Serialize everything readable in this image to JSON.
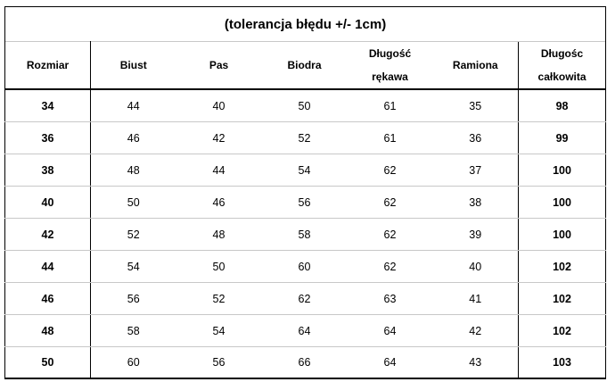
{
  "title": "(tolerancja błędu +/- 1cm)",
  "headers": {
    "size": "Rozmiar",
    "bust": "Biust",
    "waist": "Pas",
    "hips": "Biodra",
    "sleeve_line1": "Długość",
    "sleeve_line2": "rękawa",
    "shoulders": "Ramiona",
    "total_line1": "Długośc",
    "total_line2": "całkowita"
  },
  "rows": [
    {
      "size": "34",
      "bust": "44",
      "waist": "40",
      "hips": "50",
      "sleeve": "61",
      "shoulders": "35",
      "total": "98"
    },
    {
      "size": "36",
      "bust": "46",
      "waist": "42",
      "hips": "52",
      "sleeve": "61",
      "shoulders": "36",
      "total": "99"
    },
    {
      "size": "38",
      "bust": "48",
      "waist": "44",
      "hips": "54",
      "sleeve": "62",
      "shoulders": "37",
      "total": "100"
    },
    {
      "size": "40",
      "bust": "50",
      "waist": "46",
      "hips": "56",
      "sleeve": "62",
      "shoulders": "38",
      "total": "100"
    },
    {
      "size": "42",
      "bust": "52",
      "waist": "48",
      "hips": "58",
      "sleeve": "62",
      "shoulders": "39",
      "total": "100"
    },
    {
      "size": "44",
      "bust": "54",
      "waist": "50",
      "hips": "60",
      "sleeve": "62",
      "shoulders": "40",
      "total": "102"
    },
    {
      "size": "46",
      "bust": "56",
      "waist": "52",
      "hips": "62",
      "sleeve": "63",
      "shoulders": "41",
      "total": "102"
    },
    {
      "size": "48",
      "bust": "58",
      "waist": "54",
      "hips": "64",
      "sleeve": "64",
      "shoulders": "42",
      "total": "102"
    },
    {
      "size": "50",
      "bust": "60",
      "waist": "56",
      "hips": "66",
      "sleeve": "64",
      "shoulders": "43",
      "total": "103"
    }
  ]
}
